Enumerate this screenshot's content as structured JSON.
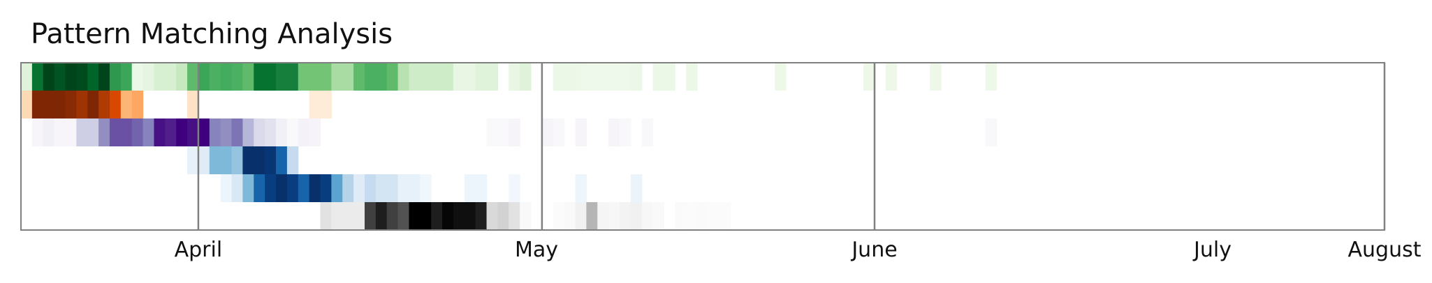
{
  "chart_data": {
    "type": "heatmap",
    "title": "Pattern Matching Analysis",
    "x_start": "2024-03-31",
    "x_end": "2024-08-01",
    "month_ticks": [
      {
        "label": "April",
        "start": "2024-04-01",
        "end": "2024-05-01"
      },
      {
        "label": "May",
        "start": "2024-05-01",
        "end": "2024-06-01"
      },
      {
        "label": "June",
        "start": "2024-06-01",
        "end": "2024-07-01"
      },
      {
        "label": "July",
        "start": "2024-07-01",
        "end": "2024-08-01"
      },
      {
        "label": "August",
        "start": "2024-08-01",
        "end": "2024-08-01"
      }
    ],
    "month_boundaries": [
      "2024-04-16",
      "2024-05-17",
      "2024-06-16",
      "2024-08-01"
    ],
    "rows": [
      {
        "colormap": "Greens",
        "cells": [
          {
            "date": "2024-03-31",
            "v": 0.15
          },
          {
            "date": "2024-04-01",
            "v": 0.85
          },
          {
            "date": "2024-04-02",
            "v": 1.0
          },
          {
            "date": "2024-04-03",
            "v": 0.95
          },
          {
            "date": "2024-04-04",
            "v": 1.0
          },
          {
            "date": "2024-04-05",
            "v": 0.98
          },
          {
            "date": "2024-04-06",
            "v": 0.9
          },
          {
            "date": "2024-04-07",
            "v": 1.0
          },
          {
            "date": "2024-04-08",
            "v": 0.7
          },
          {
            "date": "2024-04-09",
            "v": 0.65
          },
          {
            "date": "2024-04-10",
            "v": 0.08
          },
          {
            "date": "2024-04-11",
            "v": 0.12
          },
          {
            "date": "2024-04-12",
            "v": 0.18
          },
          {
            "date": "2024-04-13",
            "v": 0.18
          },
          {
            "date": "2024-04-14",
            "v": 0.25
          },
          {
            "date": "2024-04-15",
            "v": 0.55
          },
          {
            "date": "2024-04-16",
            "v": 0.65
          },
          {
            "date": "2024-04-17",
            "v": 0.6
          },
          {
            "date": "2024-04-18",
            "v": 0.62
          },
          {
            "date": "2024-04-19",
            "v": 0.6
          },
          {
            "date": "2024-04-20",
            "v": 0.55
          },
          {
            "date": "2024-04-21",
            "v": 0.85
          },
          {
            "date": "2024-04-22",
            "v": 0.85
          },
          {
            "date": "2024-04-23",
            "v": 0.8
          },
          {
            "date": "2024-04-24",
            "v": 0.8
          },
          {
            "date": "2024-04-25",
            "v": 0.5
          },
          {
            "date": "2024-04-26",
            "v": 0.5
          },
          {
            "date": "2024-04-27",
            "v": 0.5
          },
          {
            "date": "2024-04-28",
            "v": 0.35
          },
          {
            "date": "2024-04-29",
            "v": 0.35
          },
          {
            "date": "2024-04-30",
            "v": 0.55
          },
          {
            "date": "2024-05-01",
            "v": 0.6
          },
          {
            "date": "2024-05-02",
            "v": 0.6
          },
          {
            "date": "2024-05-03",
            "v": 0.55
          },
          {
            "date": "2024-05-04",
            "v": 0.3
          },
          {
            "date": "2024-05-05",
            "v": 0.22
          },
          {
            "date": "2024-05-06",
            "v": 0.22
          },
          {
            "date": "2024-05-07",
            "v": 0.22
          },
          {
            "date": "2024-05-08",
            "v": 0.22
          },
          {
            "date": "2024-05-09",
            "v": 0.1
          },
          {
            "date": "2024-05-10",
            "v": 0.1
          },
          {
            "date": "2024-05-11",
            "v": 0.15
          },
          {
            "date": "2024-05-12",
            "v": 0.15
          },
          {
            "date": "2024-05-14",
            "v": 0.1
          },
          {
            "date": "2024-05-15",
            "v": 0.15
          },
          {
            "date": "2024-05-18",
            "v": 0.08
          },
          {
            "date": "2024-05-19",
            "v": 0.08
          },
          {
            "date": "2024-05-20",
            "v": 0.07
          },
          {
            "date": "2024-05-21",
            "v": 0.06
          },
          {
            "date": "2024-05-22",
            "v": 0.06
          },
          {
            "date": "2024-05-23",
            "v": 0.06
          },
          {
            "date": "2024-05-24",
            "v": 0.06
          },
          {
            "date": "2024-05-25",
            "v": 0.08
          },
          {
            "date": "2024-05-27",
            "v": 0.08
          },
          {
            "date": "2024-05-28",
            "v": 0.08
          },
          {
            "date": "2024-05-30",
            "v": 0.08
          },
          {
            "date": "2024-06-07",
            "v": 0.07
          },
          {
            "date": "2024-06-15",
            "v": 0.07
          },
          {
            "date": "2024-06-17",
            "v": 0.07
          },
          {
            "date": "2024-06-21",
            "v": 0.07
          },
          {
            "date": "2024-06-26",
            "v": 0.07
          }
        ]
      },
      {
        "colormap": "Oranges",
        "cells": [
          {
            "date": "2024-03-31",
            "v": 0.2
          },
          {
            "date": "2024-04-01",
            "v": 1.0
          },
          {
            "date": "2024-04-02",
            "v": 1.0
          },
          {
            "date": "2024-04-03",
            "v": 1.0
          },
          {
            "date": "2024-04-04",
            "v": 0.97
          },
          {
            "date": "2024-04-05",
            "v": 0.9
          },
          {
            "date": "2024-04-06",
            "v": 1.0
          },
          {
            "date": "2024-04-07",
            "v": 0.85
          },
          {
            "date": "2024-04-08",
            "v": 0.75
          },
          {
            "date": "2024-04-09",
            "v": 0.35
          },
          {
            "date": "2024-04-10",
            "v": 0.4
          },
          {
            "date": "2024-04-15",
            "v": 0.15
          },
          {
            "date": "2024-04-26",
            "v": 0.08
          },
          {
            "date": "2024-04-27",
            "v": 0.08
          }
        ]
      },
      {
        "colormap": "Purples",
        "cells": [
          {
            "date": "2024-04-01",
            "v": 0.05
          },
          {
            "date": "2024-04-02",
            "v": 0.1
          },
          {
            "date": "2024-04-03",
            "v": 0.05
          },
          {
            "date": "2024-04-04",
            "v": 0.05
          },
          {
            "date": "2024-04-05",
            "v": 0.3
          },
          {
            "date": "2024-04-06",
            "v": 0.3
          },
          {
            "date": "2024-04-07",
            "v": 0.55
          },
          {
            "date": "2024-04-08",
            "v": 0.75
          },
          {
            "date": "2024-04-09",
            "v": 0.75
          },
          {
            "date": "2024-04-10",
            "v": 0.7
          },
          {
            "date": "2024-04-11",
            "v": 0.6
          },
          {
            "date": "2024-04-12",
            "v": 0.95
          },
          {
            "date": "2024-04-13",
            "v": 0.9
          },
          {
            "date": "2024-04-14",
            "v": 1.0
          },
          {
            "date": "2024-04-15",
            "v": 0.95
          },
          {
            "date": "2024-04-16",
            "v": 1.0
          },
          {
            "date": "2024-04-17",
            "v": 0.6
          },
          {
            "date": "2024-04-18",
            "v": 0.55
          },
          {
            "date": "2024-04-19",
            "v": 0.65
          },
          {
            "date": "2024-04-20",
            "v": 0.4
          },
          {
            "date": "2024-04-21",
            "v": 0.25
          },
          {
            "date": "2024-04-22",
            "v": 0.2
          },
          {
            "date": "2024-04-23",
            "v": 0.1
          },
          {
            "date": "2024-04-24",
            "v": 0.03
          },
          {
            "date": "2024-04-25",
            "v": 0.08
          },
          {
            "date": "2024-04-26",
            "v": 0.06
          },
          {
            "date": "2024-05-12",
            "v": 0.03
          },
          {
            "date": "2024-05-13",
            "v": 0.03
          },
          {
            "date": "2024-05-14",
            "v": 0.06
          },
          {
            "date": "2024-05-17",
            "v": 0.06
          },
          {
            "date": "2024-05-18",
            "v": 0.04
          },
          {
            "date": "2024-05-20",
            "v": 0.06
          },
          {
            "date": "2024-05-23",
            "v": 0.06
          },
          {
            "date": "2024-05-24",
            "v": 0.04
          },
          {
            "date": "2024-05-26",
            "v": 0.04
          },
          {
            "date": "2024-06-26",
            "v": 0.04
          }
        ]
      },
      {
        "colormap": "Blues",
        "cells": [
          {
            "date": "2024-04-15",
            "v": 0.08
          },
          {
            "date": "2024-04-16",
            "v": 0.12
          },
          {
            "date": "2024-04-17",
            "v": 0.45
          },
          {
            "date": "2024-04-18",
            "v": 0.45
          },
          {
            "date": "2024-04-19",
            "v": 0.4
          },
          {
            "date": "2024-04-20",
            "v": 1.0
          },
          {
            "date": "2024-04-21",
            "v": 1.0
          },
          {
            "date": "2024-04-22",
            "v": 0.98
          },
          {
            "date": "2024-04-23",
            "v": 0.8
          },
          {
            "date": "2024-04-24",
            "v": 0.25
          }
        ]
      },
      {
        "colormap": "Blues",
        "cells": [
          {
            "date": "2024-04-18",
            "v": 0.05
          },
          {
            "date": "2024-04-19",
            "v": 0.15
          },
          {
            "date": "2024-04-20",
            "v": 0.45
          },
          {
            "date": "2024-04-21",
            "v": 0.8
          },
          {
            "date": "2024-04-22",
            "v": 0.95
          },
          {
            "date": "2024-04-23",
            "v": 1.0
          },
          {
            "date": "2024-04-24",
            "v": 0.95
          },
          {
            "date": "2024-04-25",
            "v": 0.8
          },
          {
            "date": "2024-04-26",
            "v": 1.0
          },
          {
            "date": "2024-04-27",
            "v": 0.95
          },
          {
            "date": "2024-04-28",
            "v": 0.55
          },
          {
            "date": "2024-04-29",
            "v": 0.3
          },
          {
            "date": "2024-04-30",
            "v": 0.12
          },
          {
            "date": "2024-05-01",
            "v": 0.25
          },
          {
            "date": "2024-05-02",
            "v": 0.18
          },
          {
            "date": "2024-05-03",
            "v": 0.18
          },
          {
            "date": "2024-05-04",
            "v": 0.08
          },
          {
            "date": "2024-05-05",
            "v": 0.08
          },
          {
            "date": "2024-05-06",
            "v": 0.04
          },
          {
            "date": "2024-05-10",
            "v": 0.05
          },
          {
            "date": "2024-05-11",
            "v": 0.05
          },
          {
            "date": "2024-05-14",
            "v": 0.03
          },
          {
            "date": "2024-05-20",
            "v": 0.05
          },
          {
            "date": "2024-05-25",
            "v": 0.06
          }
        ]
      },
      {
        "colormap": "Greys",
        "cells": [
          {
            "date": "2024-04-27",
            "v": 0.2
          },
          {
            "date": "2024-04-28",
            "v": 0.15
          },
          {
            "date": "2024-04-29",
            "v": 0.15
          },
          {
            "date": "2024-04-30",
            "v": 0.15
          },
          {
            "date": "2024-05-01",
            "v": 0.8
          },
          {
            "date": "2024-05-02",
            "v": 0.9
          },
          {
            "date": "2024-05-03",
            "v": 0.8
          },
          {
            "date": "2024-05-04",
            "v": 0.75
          },
          {
            "date": "2024-05-05",
            "v": 1.0
          },
          {
            "date": "2024-05-06",
            "v": 1.0
          },
          {
            "date": "2024-05-07",
            "v": 0.9
          },
          {
            "date": "2024-05-08",
            "v": 0.98
          },
          {
            "date": "2024-05-09",
            "v": 0.95
          },
          {
            "date": "2024-05-10",
            "v": 0.95
          },
          {
            "date": "2024-05-11",
            "v": 0.9
          },
          {
            "date": "2024-05-12",
            "v": 0.25
          },
          {
            "date": "2024-05-13",
            "v": 0.28
          },
          {
            "date": "2024-05-14",
            "v": 0.2
          },
          {
            "date": "2024-05-15",
            "v": 0.05
          },
          {
            "date": "2024-05-18",
            "v": 0.03
          },
          {
            "date": "2024-05-19",
            "v": 0.05
          },
          {
            "date": "2024-05-20",
            "v": 0.12
          },
          {
            "date": "2024-05-21",
            "v": 0.4
          },
          {
            "date": "2024-05-22",
            "v": 0.08
          },
          {
            "date": "2024-05-23",
            "v": 0.07
          },
          {
            "date": "2024-05-24",
            "v": 0.1
          },
          {
            "date": "2024-05-25",
            "v": 0.12
          },
          {
            "date": "2024-05-26",
            "v": 0.07
          },
          {
            "date": "2024-05-27",
            "v": 0.05
          },
          {
            "date": "2024-05-29",
            "v": 0.04
          },
          {
            "date": "2024-05-30",
            "v": 0.03
          },
          {
            "date": "2024-05-31",
            "v": 0.04
          },
          {
            "date": "2024-06-01",
            "v": 0.03
          },
          {
            "date": "2024-06-02",
            "v": 0.03
          }
        ]
      }
    ],
    "colors": {
      "Greens": [
        "#f7fcf5",
        "#e5f5e0",
        "#c7e9c0",
        "#a1d99b",
        "#74c476",
        "#41ab5d",
        "#238b45",
        "#006d2c",
        "#00441b"
      ],
      "Oranges": [
        "#fff5eb",
        "#fee6ce",
        "#fdd0a2",
        "#fdae6b",
        "#fd8d3c",
        "#f16913",
        "#d94801",
        "#a63603",
        "#7f2704"
      ],
      "Purples": [
        "#fcfbfd",
        "#efedf5",
        "#dadaeb",
        "#bcbddc",
        "#9e9ac8",
        "#807dba",
        "#6a51a3",
        "#54278f",
        "#3f007d"
      ],
      "Blues": [
        "#f7fbff",
        "#deebf7",
        "#c6dbef",
        "#9ecae1",
        "#6baed6",
        "#4292c6",
        "#2171b5",
        "#08519c",
        "#08306b"
      ],
      "Greys": [
        "#ffffff",
        "#f0f0f0",
        "#d9d9d9",
        "#bdbdbd",
        "#969696",
        "#737373",
        "#525252",
        "#252525",
        "#000000"
      ],
      "frame": "#808080"
    }
  }
}
